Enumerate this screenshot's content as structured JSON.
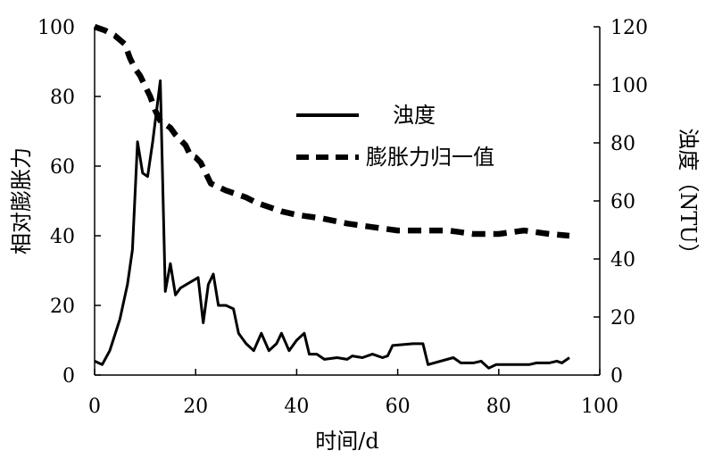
{
  "chart_data": {
    "type": "line",
    "xlabel": "时间/d",
    "ylabel_left": "相对膨胀力",
    "ylabel_right": "浊度（NTU）",
    "xlim": [
      0,
      100
    ],
    "ylim_left": [
      0,
      100
    ],
    "ylim_right": [
      0,
      120
    ],
    "x_ticks": [
      "0",
      "20",
      "40",
      "60",
      "80",
      "100"
    ],
    "y_left_ticks": [
      "0",
      "20",
      "40",
      "60",
      "80",
      "100"
    ],
    "y_right_ticks": [
      "0",
      "20",
      "40",
      "60",
      "80",
      "100",
      "120"
    ],
    "legend_position": "upper-center",
    "grid": false,
    "series": [
      {
        "name": "浊度",
        "axis": "right",
        "style": "solid",
        "color": "#000000",
        "points": [
          [
            0,
            4.8
          ],
          [
            1.5,
            3.6
          ],
          [
            3,
            8.4
          ],
          [
            5,
            19.2
          ],
          [
            6.5,
            31.2
          ],
          [
            7.5,
            43.2
          ],
          [
            8.5,
            80.4
          ],
          [
            9.5,
            69.6
          ],
          [
            10.5,
            68.4
          ],
          [
            11.5,
            80.4
          ],
          [
            13,
            101.4
          ],
          [
            14,
            28.8
          ],
          [
            15,
            38.4
          ],
          [
            16,
            27.6
          ],
          [
            17,
            30
          ],
          [
            20.5,
            33.6
          ],
          [
            21.5,
            18
          ],
          [
            22.5,
            31.2
          ],
          [
            23.5,
            34.8
          ],
          [
            24.5,
            24
          ],
          [
            26,
            24
          ],
          [
            27.5,
            22.8
          ],
          [
            28.5,
            14.4
          ],
          [
            30,
            10.8
          ],
          [
            31.5,
            8.4
          ],
          [
            33,
            14.4
          ],
          [
            34.5,
            8.4
          ],
          [
            36,
            10.8
          ],
          [
            37,
            14.4
          ],
          [
            38.5,
            8.4
          ],
          [
            40,
            12
          ],
          [
            41.5,
            14.4
          ],
          [
            42.5,
            7.2
          ],
          [
            44,
            7.2
          ],
          [
            45.5,
            5.4
          ],
          [
            48,
            6
          ],
          [
            50,
            5.4
          ],
          [
            51,
            6.6
          ],
          [
            53,
            6
          ],
          [
            55,
            7.2
          ],
          [
            57,
            6
          ],
          [
            58,
            6.6
          ],
          [
            59,
            10.2
          ],
          [
            63,
            10.8
          ],
          [
            65,
            10.8
          ],
          [
            66,
            3.6
          ],
          [
            71,
            6
          ],
          [
            72.5,
            4.2
          ],
          [
            75,
            4.2
          ],
          [
            76.5,
            4.8
          ],
          [
            78,
            2.4
          ],
          [
            79.5,
            3.6
          ],
          [
            82,
            3.6
          ],
          [
            86,
            3.6
          ],
          [
            87.5,
            4.2
          ],
          [
            90,
            4.2
          ],
          [
            91.5,
            4.8
          ],
          [
            92.5,
            4.2
          ],
          [
            94,
            6
          ]
        ]
      },
      {
        "name": "膨胀力归一值",
        "axis": "left",
        "style": "dashed",
        "color": "#000000",
        "points": [
          [
            0,
            100
          ],
          [
            2,
            99
          ],
          [
            4,
            97.5
          ],
          [
            6,
            95
          ],
          [
            7,
            91
          ],
          [
            8,
            88
          ],
          [
            9,
            86
          ],
          [
            10,
            83
          ],
          [
            11,
            80
          ],
          [
            12,
            76
          ],
          [
            13,
            73
          ],
          [
            14,
            72
          ],
          [
            15,
            71
          ],
          [
            16,
            69
          ],
          [
            18,
            66
          ],
          [
            19,
            63
          ],
          [
            20,
            62.5
          ],
          [
            21,
            61
          ],
          [
            22,
            58
          ],
          [
            23,
            55
          ],
          [
            26,
            53
          ],
          [
            28,
            52
          ],
          [
            30,
            51
          ],
          [
            32,
            49.5
          ],
          [
            34,
            48.5
          ],
          [
            37,
            47
          ],
          [
            40,
            46
          ],
          [
            45,
            45
          ],
          [
            50,
            43.5
          ],
          [
            55,
            42.5
          ],
          [
            60,
            41.5
          ],
          [
            65,
            41.5
          ],
          [
            70,
            41.5
          ],
          [
            75,
            40.5
          ],
          [
            80,
            40.5
          ],
          [
            85,
            41.5
          ],
          [
            90,
            40.5
          ],
          [
            94,
            40
          ]
        ]
      }
    ]
  }
}
